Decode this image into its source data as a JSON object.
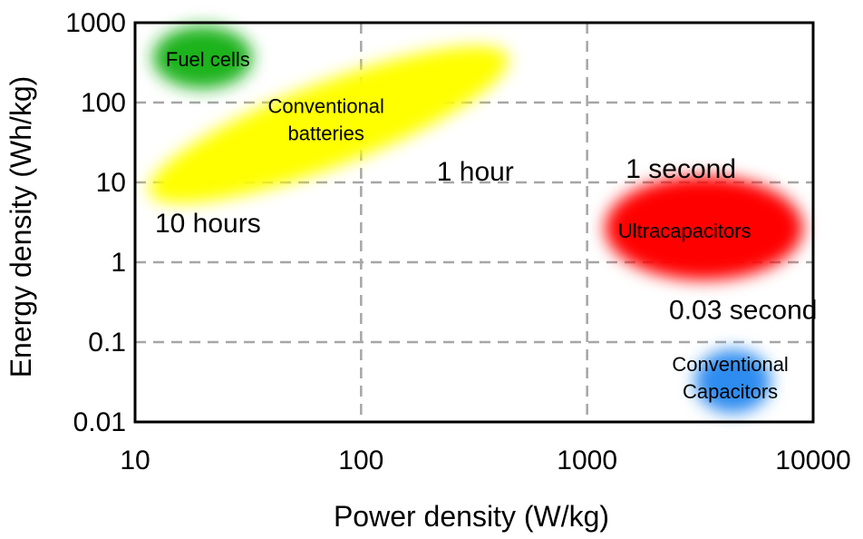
{
  "chart_data": {
    "type": "scatter",
    "title": "",
    "xlabel": "Power density (W/kg)",
    "ylabel": "Energy density (Wh/kg)",
    "xscale": "log",
    "yscale": "log",
    "xlim": [
      10,
      10000
    ],
    "ylim": [
      0.01,
      1000
    ],
    "xticks": [
      "10",
      "100",
      "1000",
      "10000"
    ],
    "yticks": [
      "0.01",
      "0.1",
      "1",
      "10",
      "100",
      "1000"
    ],
    "grid": true,
    "regions": [
      {
        "label": "Fuel cells",
        "color": "#1db31d",
        "x_range": [
          12,
          33
        ],
        "y_range": [
          150,
          900
        ],
        "center": [
          21,
          350
        ]
      },
      {
        "label": "Conventional batteries",
        "color": "#ffff00",
        "x_range": [
          11,
          470
        ],
        "y_range": [
          7,
          400
        ],
        "center": [
          70,
          60
        ]
      },
      {
        "label": "Ultracapacitors",
        "color": "#ff0000",
        "x_range": [
          1200,
          9000
        ],
        "y_range": [
          0.6,
          12
        ],
        "center": [
          2700,
          2.5
        ]
      },
      {
        "label": "Conventional Capacitors",
        "color": "#2e8cf0",
        "x_range": [
          3000,
          6500
        ],
        "y_range": [
          0.013,
          0.08
        ],
        "center": [
          4300,
          0.035
        ]
      }
    ],
    "annotations": [
      {
        "text": "10 hours",
        "x": 21,
        "y": 2.9
      },
      {
        "text": "1 hour",
        "x": 320,
        "y": 13
      },
      {
        "text": "1 second",
        "x": 2600,
        "y": 14
      },
      {
        "text": "0.03 second",
        "x": 4900,
        "y": 0.24
      }
    ]
  }
}
